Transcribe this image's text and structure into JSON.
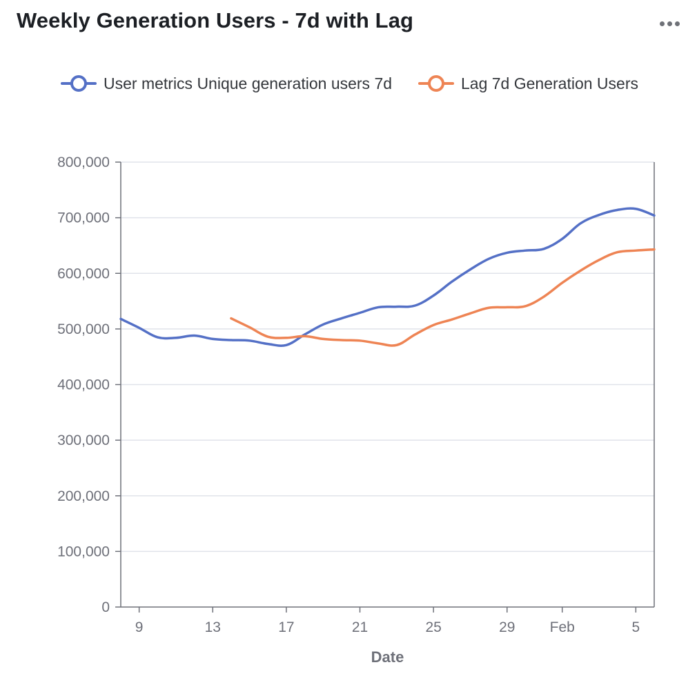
{
  "header": {
    "title": "Weekly Generation Users - 7d with Lag",
    "menu_icon": "more-horizontal-icon"
  },
  "colors": {
    "series_1": "#5470c6",
    "series_2": "#ee8454",
    "grid": "#e0e3ea",
    "axis": "#6e7079"
  },
  "chart_data": {
    "type": "line",
    "title": "Weekly Generation Users - 7d with Lag",
    "xlabel": "Date",
    "ylabel": "",
    "xlim": [
      "2024-01-08",
      "2024-02-05"
    ],
    "ylim": [
      0,
      800000
    ],
    "x_ticks": [
      "9",
      "13",
      "17",
      "21",
      "25",
      "29",
      "Feb",
      "5"
    ],
    "y_ticks": [
      "0",
      "100,000",
      "200,000",
      "300,000",
      "400,000",
      "500,000",
      "600,000",
      "700,000",
      "800,000"
    ],
    "grid": true,
    "legend_position": "top",
    "series": [
      {
        "name": "User metrics Unique generation users 7d",
        "color": "#5470c6",
        "points": [
          [
            "2024-01-08",
            518000
          ],
          [
            "2024-01-09",
            502000
          ],
          [
            "2024-01-10",
            485000
          ],
          [
            "2024-01-11",
            484000
          ],
          [
            "2024-01-12",
            488000
          ],
          [
            "2024-01-13",
            482000
          ],
          [
            "2024-01-14",
            480000
          ],
          [
            "2024-01-15",
            479000
          ],
          [
            "2024-01-16",
            473000
          ],
          [
            "2024-01-17",
            471000
          ],
          [
            "2024-01-18",
            490000
          ],
          [
            "2024-01-19",
            508000
          ],
          [
            "2024-01-20",
            519000
          ],
          [
            "2024-01-21",
            529000
          ],
          [
            "2024-01-22",
            539000
          ],
          [
            "2024-01-23",
            540000
          ],
          [
            "2024-01-24",
            542000
          ],
          [
            "2024-01-25",
            560000
          ],
          [
            "2024-01-26",
            585000
          ],
          [
            "2024-01-27",
            607000
          ],
          [
            "2024-01-28",
            626000
          ],
          [
            "2024-01-29",
            637000
          ],
          [
            "2024-01-30",
            641000
          ],
          [
            "2024-01-31",
            644000
          ],
          [
            "2024-02-01",
            662000
          ],
          [
            "2024-02-02",
            690000
          ],
          [
            "2024-02-03",
            705000
          ],
          [
            "2024-02-04",
            714000
          ],
          [
            "2024-02-05",
            716000
          ],
          [
            "2024-02-06",
            704000
          ]
        ]
      },
      {
        "name": "Lag 7d Generation Users",
        "color": "#ee8454",
        "points": [
          [
            "2024-01-14",
            519000
          ],
          [
            "2024-01-15",
            503000
          ],
          [
            "2024-01-16",
            486000
          ],
          [
            "2024-01-17",
            484000
          ],
          [
            "2024-01-18",
            487000
          ],
          [
            "2024-01-19",
            482000
          ],
          [
            "2024-01-20",
            480000
          ],
          [
            "2024-01-21",
            479000
          ],
          [
            "2024-01-22",
            474000
          ],
          [
            "2024-01-23",
            471000
          ],
          [
            "2024-01-24",
            490000
          ],
          [
            "2024-01-25",
            507000
          ],
          [
            "2024-01-26",
            517000
          ],
          [
            "2024-01-27",
            528000
          ],
          [
            "2024-01-28",
            538000
          ],
          [
            "2024-01-29",
            539000
          ],
          [
            "2024-01-30",
            541000
          ],
          [
            "2024-01-31",
            558000
          ],
          [
            "2024-02-01",
            583000
          ],
          [
            "2024-02-02",
            605000
          ],
          [
            "2024-02-03",
            624000
          ],
          [
            "2024-02-04",
            638000
          ],
          [
            "2024-02-05",
            641000
          ],
          [
            "2024-02-06",
            643000
          ]
        ]
      }
    ]
  }
}
